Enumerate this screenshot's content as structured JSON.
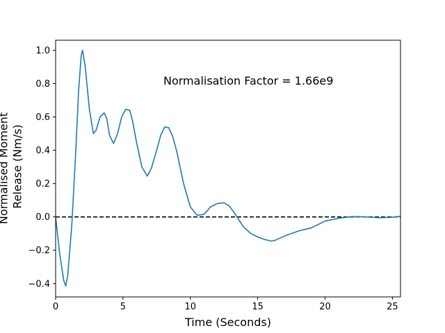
{
  "chart_data": {
    "type": "line",
    "title": "",
    "xlabel": "Time (Seconds)",
    "ylabel_lines": [
      "Normalised Moment",
      "Release (Nm/s)"
    ],
    "xlim": [
      0,
      25.6
    ],
    "ylim": [
      -0.48,
      1.06
    ],
    "xticks": [
      0,
      5,
      10,
      15,
      20,
      25
    ],
    "yticks": [
      -0.4,
      -0.2,
      0.0,
      0.2,
      0.4,
      0.6,
      0.8,
      1.0
    ],
    "ytick_labels": [
      "−0.4",
      "−0.2",
      "0.0",
      "0.2",
      "0.4",
      "0.6",
      "0.8",
      "1.0"
    ],
    "grid": false,
    "annotation": "Normalisation Factor = 1.66e9",
    "reference_line": {
      "y": 0,
      "style": "dashed",
      "color": "#000000"
    },
    "series": [
      {
        "color": "#1f77b4",
        "x": [
          0,
          0.3,
          0.6,
          0.75,
          0.9,
          1.2,
          1.5,
          1.7,
          1.9,
          2.0,
          2.2,
          2.5,
          2.8,
          3.0,
          3.3,
          3.6,
          3.8,
          4.0,
          4.3,
          4.6,
          4.9,
          5.2,
          5.5,
          5.7,
          6.0,
          6.4,
          6.8,
          7.1,
          7.5,
          7.8,
          8.1,
          8.4,
          8.7,
          9.0,
          9.5,
          10.0,
          10.5,
          11.0,
          11.5,
          12.0,
          12.5,
          12.9,
          13.3,
          13.7,
          14.0,
          14.5,
          15.0,
          15.5,
          16.0,
          16.3,
          17.0,
          18.0,
          19.0,
          20.0,
          21.0,
          22.0,
          23.0,
          24.0,
          25.0,
          25.6
        ],
        "y": [
          0.0,
          -0.22,
          -0.38,
          -0.415,
          -0.35,
          -0.05,
          0.4,
          0.75,
          0.97,
          1.0,
          0.9,
          0.65,
          0.5,
          0.52,
          0.6,
          0.625,
          0.59,
          0.49,
          0.44,
          0.5,
          0.6,
          0.645,
          0.64,
          0.58,
          0.45,
          0.3,
          0.245,
          0.29,
          0.4,
          0.49,
          0.54,
          0.535,
          0.48,
          0.39,
          0.2,
          0.06,
          0.01,
          0.015,
          0.06,
          0.08,
          0.085,
          0.065,
          0.02,
          -0.03,
          -0.065,
          -0.1,
          -0.12,
          -0.135,
          -0.145,
          -0.14,
          -0.115,
          -0.085,
          -0.065,
          -0.025,
          -0.008,
          0.002,
          0.0,
          -0.005,
          -0.002,
          0.004
        ]
      }
    ]
  }
}
